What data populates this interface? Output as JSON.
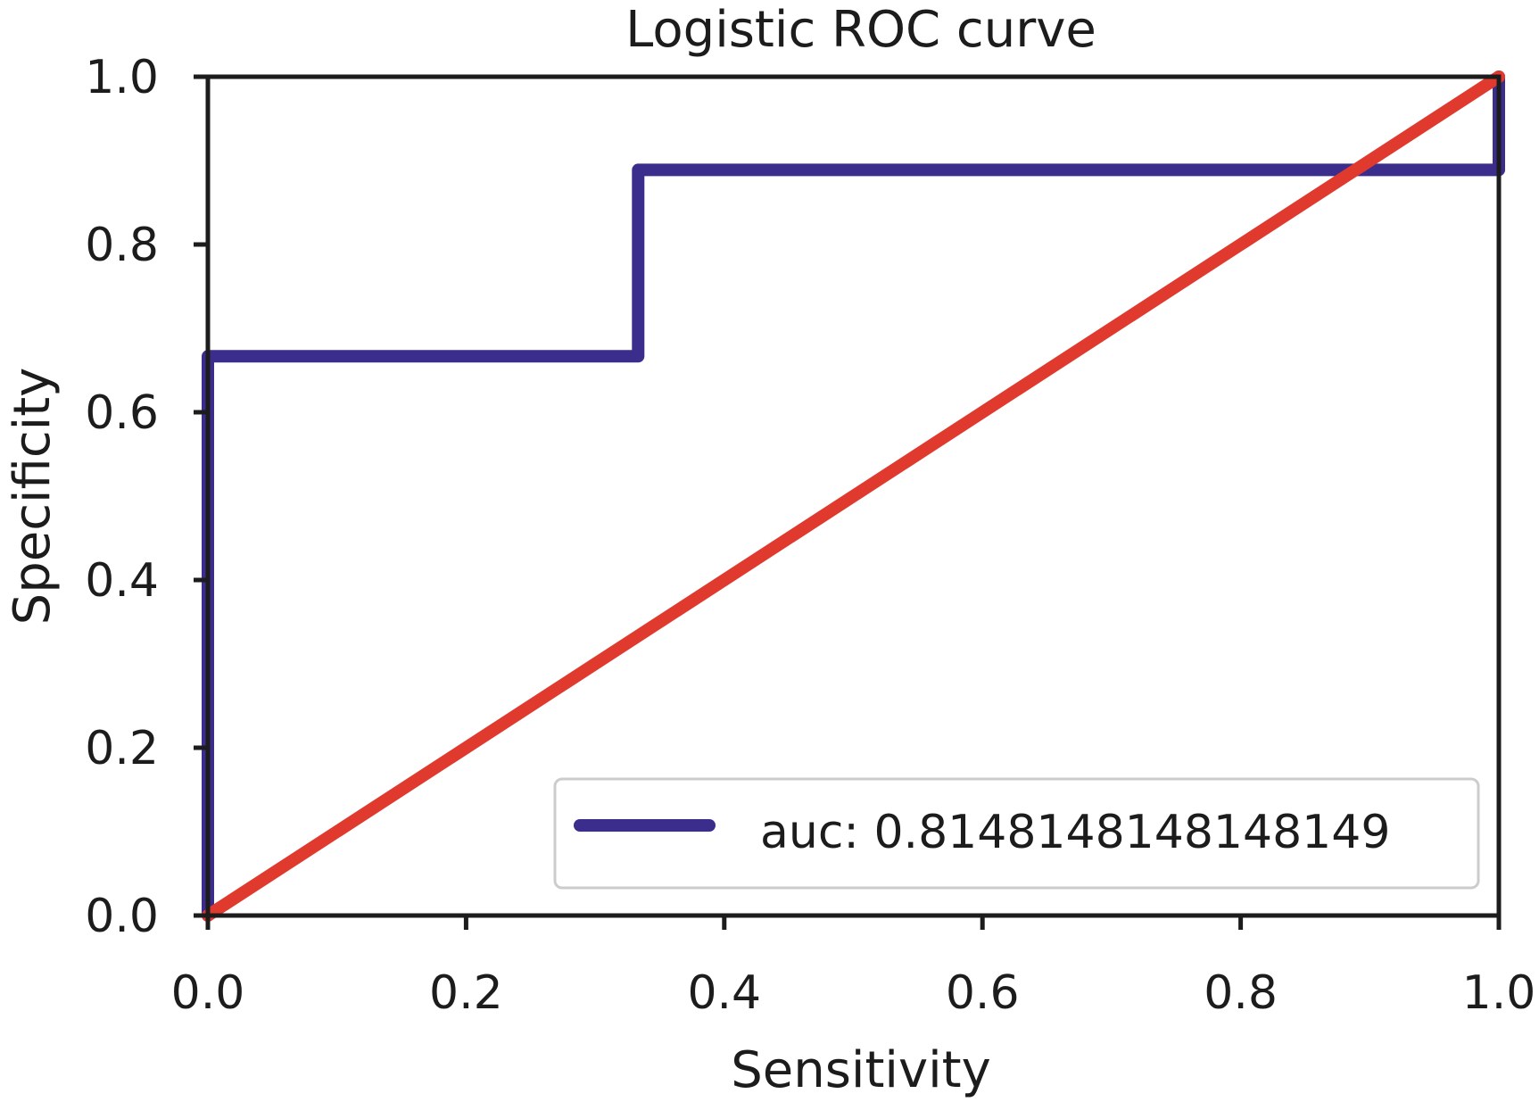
{
  "chart_data": {
    "type": "line",
    "title": "Logistic ROC curve",
    "xlabel": "Sensitivity",
    "ylabel": "Specificity",
    "xlim": [
      0.0,
      1.0
    ],
    "ylim": [
      0.0,
      1.0
    ],
    "xticks": [
      0.0,
      0.2,
      0.4,
      0.6,
      0.8,
      1.0
    ],
    "yticks": [
      0.0,
      0.2,
      0.4,
      0.6,
      0.8,
      1.0
    ],
    "xtick_labels": [
      "0.0",
      "0.2",
      "0.4",
      "0.6",
      "0.8",
      "1.0"
    ],
    "ytick_labels": [
      "0.0",
      "0.2",
      "0.4",
      "0.6",
      "0.8",
      "1.0"
    ],
    "grid": false,
    "legend_position": "lower-right",
    "series": [
      {
        "name": "auc: 0.8148148148148149",
        "color": "#3a2d8c",
        "step": true,
        "x": [
          0.0,
          0.0,
          0.3333,
          0.3333,
          1.0,
          1.0
        ],
        "y": [
          0.0,
          0.6667,
          0.6667,
          0.8889,
          0.8889,
          1.0
        ]
      },
      {
        "color": "#e03a2f",
        "x": [
          0.0,
          1.0
        ],
        "y": [
          0.0,
          1.0
        ]
      }
    ]
  }
}
